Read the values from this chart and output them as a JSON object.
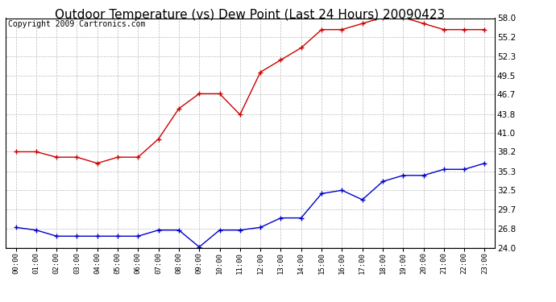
{
  "title": "Outdoor Temperature (vs) Dew Point (Last 24 Hours) 20090423",
  "copyright": "Copyright 2009 Cartronics.com",
  "hours": [
    "00:00",
    "01:00",
    "02:00",
    "03:00",
    "04:00",
    "05:00",
    "06:00",
    "07:00",
    "08:00",
    "09:00",
    "10:00",
    "11:00",
    "12:00",
    "13:00",
    "14:00",
    "15:00",
    "16:00",
    "17:00",
    "18:00",
    "19:00",
    "20:00",
    "21:00",
    "22:00",
    "23:00"
  ],
  "temp": [
    38.2,
    38.2,
    37.4,
    37.4,
    36.5,
    37.4,
    37.4,
    40.1,
    44.6,
    46.8,
    46.8,
    43.7,
    50.0,
    51.8,
    53.6,
    56.3,
    56.3,
    57.2,
    58.1,
    58.1,
    57.2,
    56.3,
    56.3,
    56.3
  ],
  "dew": [
    27.0,
    26.6,
    25.7,
    25.7,
    25.7,
    25.7,
    25.7,
    26.6,
    26.6,
    24.1,
    26.6,
    26.6,
    27.0,
    28.4,
    28.4,
    32.0,
    32.5,
    31.1,
    33.8,
    34.7,
    34.7,
    35.6,
    35.6,
    36.5
  ],
  "ylim": [
    24.0,
    58.0
  ],
  "yticks": [
    24.0,
    26.8,
    29.7,
    32.5,
    35.3,
    38.2,
    41.0,
    43.8,
    46.7,
    49.5,
    52.3,
    55.2,
    58.0
  ],
  "temp_color": "#cc0000",
  "dew_color": "#0000cc",
  "grid_color": "#bbbbbb",
  "bg_color": "#ffffff",
  "title_fontsize": 11,
  "copyright_fontsize": 7
}
